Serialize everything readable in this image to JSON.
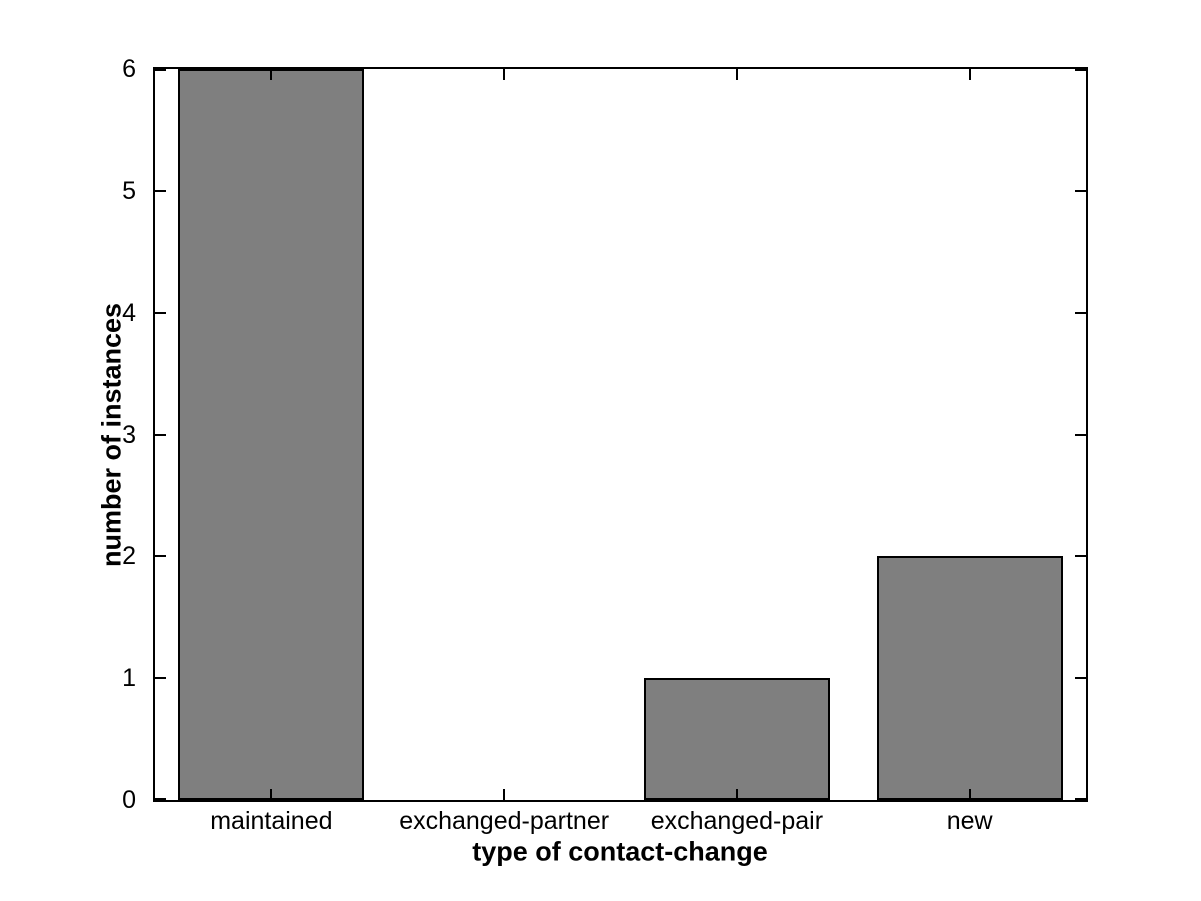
{
  "chart_data": {
    "type": "bar",
    "categories": [
      "maintained",
      "exchanged-partner",
      "exchanged-pair",
      "new"
    ],
    "values": [
      6,
      0,
      1,
      2
    ],
    "title": "",
    "xlabel": "type of contact-change",
    "ylabel": "number of instances",
    "ylim": [
      0,
      6
    ],
    "yticks": [
      0,
      1,
      2,
      3,
      4,
      5,
      6
    ],
    "bar_width_fraction": 0.8,
    "bar_color": "#7f7f7f",
    "bar_edge_color": "#000000",
    "axis_color": "#000000",
    "background_color": "#ffffff",
    "grid": "off",
    "legend": "none",
    "tick_direction": "in",
    "box": "on"
  }
}
